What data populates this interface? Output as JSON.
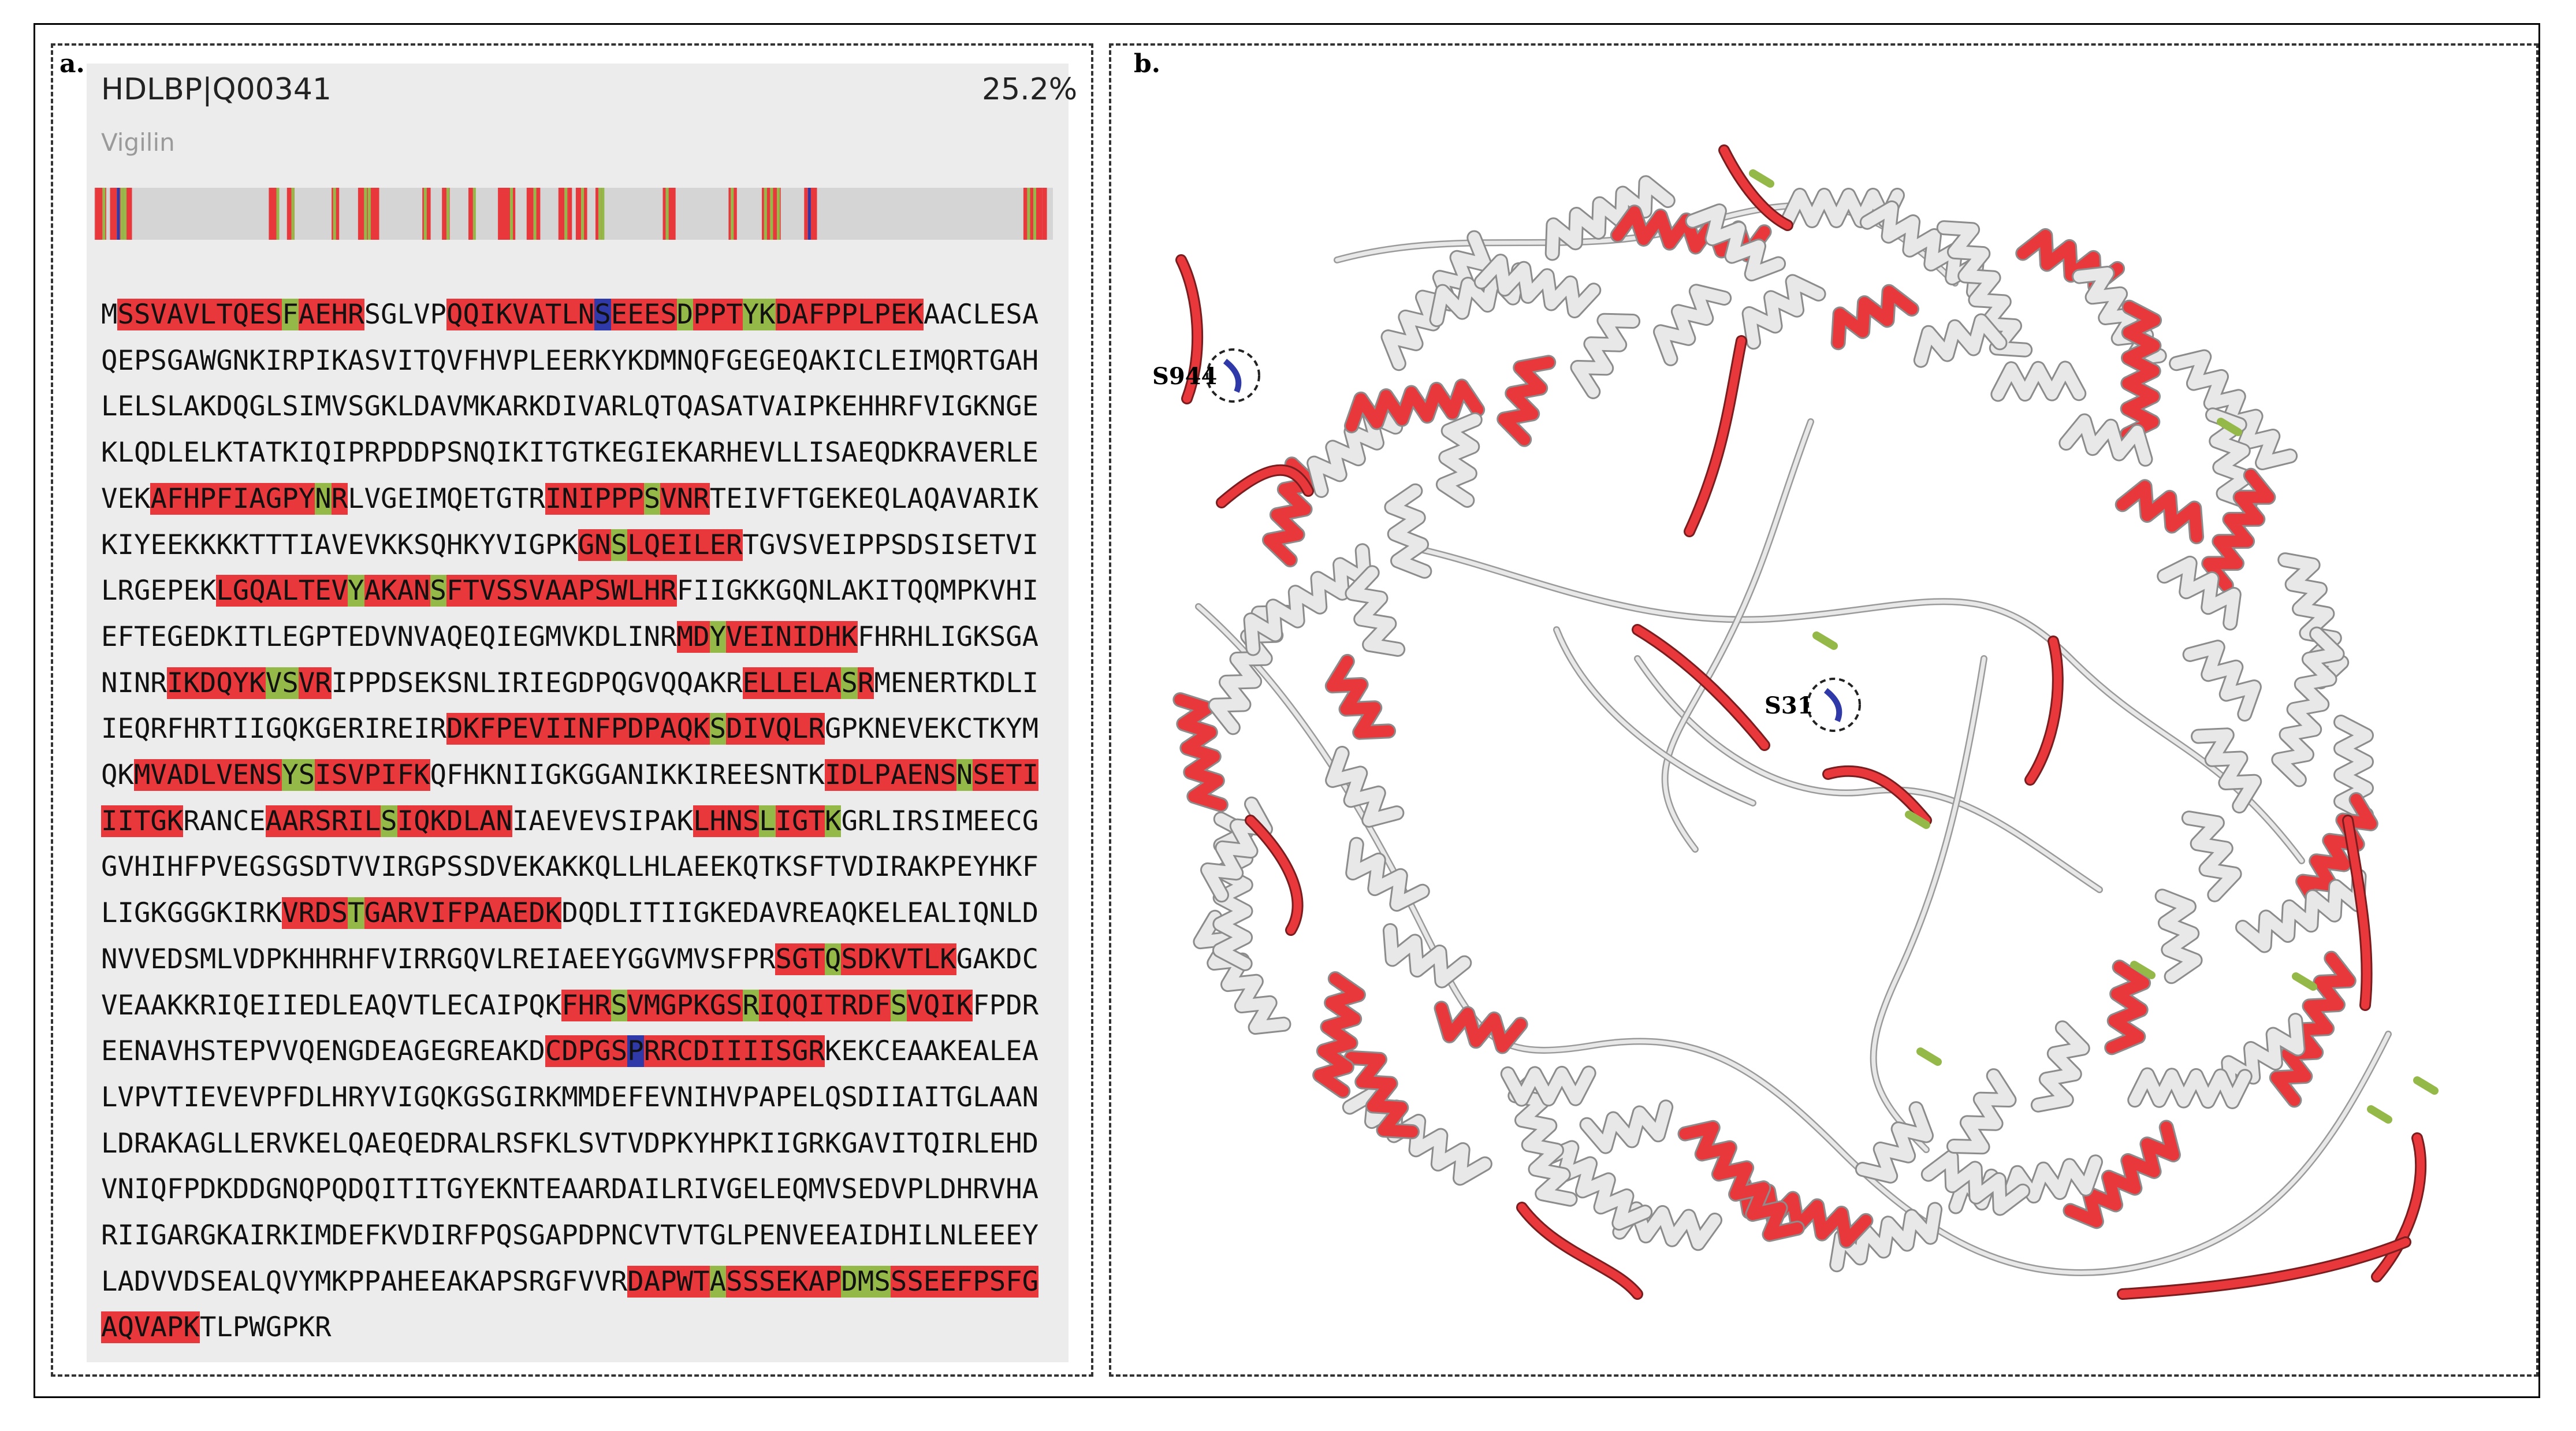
{
  "panel_a": {
    "label": "a.",
    "protein_id": "HDLBP|Q00341",
    "coverage": "25.2%",
    "protein_name": "Vigilin",
    "sequence_lines": [
      "MSSVAVLTQESFAEHRSGLVPQQIKVATLNSEEESDPPTYKDAFPPLPEKAACLESA",
      "QEPSGAWGNKIRPIKASVITQVFHVPLEERKYKDMNQFGEGEQAKICLEIMQRTGAH",
      "LELSLAKDQGLSIMVSGKLDAVMKARKDIVARLQTQASATVAIPKEHHRFVIGKNGE",
      "KLQDLELKTATKIQIPRPDDPSNQIKITGTKEGIEKARHEVLLISAEQDKRAVERLE",
      "VEKAFHPFIAGPYNRLVGEIMQETGTRINIPPPSVNRTEIVFTGEKEQLAQAVARIK",
      "KIYEEKKKKTTTIAVEVKKSQHKYVIGPKGNSLQEILERTGVSVEIPPSDSISETVI",
      "LRGEPEKLGQALTEVYAKANSFTVSSVAAPSWLHRFIIGKKGQNLAKITQQMPKVHI",
      "EFTEGEDKITLEGPTEDVNVAQEQIEGMVKDLINRMDYVEINIDHKFHRHLIGKSGA",
      "NINRIKDQYKVSVRIPPDSEKSNLIRIEGDPQGVQQAKRELLELASRMENERTKDLI",
      "IEQRFHRTIIGQKGERIREIRDKFPEVIINFPDPAQKSDIVQLRGPKNEVEKCTKYM",
      "QKMVADLVENSYSISVPIFKQFHKNIIGKGGANIKKIREESNTKIDLPAENSNSETI",
      "IITGKRANCEAARSRILSIQKDLANIAEVEVSIPAKLHNSLIGTKGRLIRSIMEECG",
      "GVHIHFPVEGSGSDTVVIRGPSSDVEKAKKQLLHLAEEKQTKSFTVDIRAKPEYHKF",
      "LIGKGGGKIRKVRDSTGARVIFPAAEDKDQDLITIIGKEDAVREAQKELEALIQNLD",
      "NVVEDSMLVDPKHHRHFVIRRGQVLREIAEEYGGVMVSFPRSGTQSDKVTLKGAKDC",
      "VEAAKKRIQEIIEDLEAQVTLECAIPQKFHRSVMGPKGSRIQQITRDFSVQIKFPDR",
      "EENAVHSTEPVVQENGDEAGEGREAKDCDPGSPRRCDIIIISGRKEKCEAAKEALEA",
      "LVPVTIEVEVPFDLHRYVIGQKGSGIRKMMDEFEVNIHVPAPELQSDIIAITGLAAN",
      "LDRAKAGLLERVKELQAEQEDRALRSFKLSVTVDPKYHPKIIGRKGAVITQIRLEHD",
      "VNIQFPDKDDGNQPQDQITITGYEKNTEAARDAILRIVGELEQMVSEDVPLDHRVHA",
      "RIIGARGKAIRKIMDEFKVDIRFPQSGAPDPNCVTVTGLPENVEEAIDHILNLEEEY",
      "LADVVDSEALQVYMKPPAHEEAKAPSRGFVVRDAPWTASSSEKAPDMSSSEEFPSFG",
      "AQVAPKTLPWGPKR"
    ],
    "highlights": [
      {
        "line": 0,
        "segs": [
          [
            1,
            "r",
            10
          ],
          [
            11,
            "g",
            1
          ],
          [
            12,
            "r",
            4
          ],
          [
            21,
            "r",
            9
          ],
          [
            30,
            "b",
            1
          ],
          [
            31,
            "r",
            4
          ],
          [
            35,
            "g",
            1
          ],
          [
            36,
            "r",
            3
          ],
          [
            39,
            "g",
            2
          ],
          [
            41,
            "r",
            9
          ]
        ]
      },
      {
        "line": 4,
        "segs": [
          [
            3,
            "r",
            10
          ],
          [
            13,
            "g",
            1
          ],
          [
            14,
            "r",
            1
          ],
          [
            27,
            "r",
            6
          ],
          [
            33,
            "g",
            1
          ],
          [
            34,
            "r",
            3
          ]
        ]
      },
      {
        "line": 5,
        "segs": [
          [
            29,
            "r",
            2
          ],
          [
            31,
            "g",
            1
          ],
          [
            32,
            "r",
            7
          ]
        ]
      },
      {
        "line": 6,
        "segs": [
          [
            7,
            "r",
            8
          ],
          [
            15,
            "g",
            1
          ],
          [
            16,
            "r",
            4
          ],
          [
            20,
            "g",
            1
          ],
          [
            21,
            "r",
            14
          ]
        ]
      },
      {
        "line": 7,
        "segs": [
          [
            35,
            "r",
            2
          ],
          [
            37,
            "g",
            1
          ],
          [
            38,
            "r",
            8
          ]
        ]
      },
      {
        "line": 8,
        "segs": [
          [
            4,
            "r",
            6
          ],
          [
            10,
            "g",
            2
          ],
          [
            12,
            "r",
            2
          ],
          [
            39,
            "r",
            6
          ],
          [
            45,
            "g",
            1
          ],
          [
            46,
            "r",
            1
          ]
        ]
      },
      {
        "line": 9,
        "segs": [
          [
            21,
            "r",
            16
          ],
          [
            37,
            "g",
            1
          ],
          [
            38,
            "r",
            6
          ]
        ]
      },
      {
        "line": 10,
        "segs": [
          [
            2,
            "r",
            9
          ],
          [
            11,
            "g",
            2
          ],
          [
            13,
            "r",
            7
          ],
          [
            44,
            "r",
            8
          ],
          [
            52,
            "g",
            1
          ],
          [
            53,
            "r",
            4
          ]
        ]
      },
      {
        "line": 11,
        "segs": [
          [
            0,
            "r",
            5
          ],
          [
            10,
            "r",
            7
          ],
          [
            17,
            "g",
            1
          ],
          [
            18,
            "r",
            7
          ],
          [
            36,
            "r",
            4
          ],
          [
            40,
            "g",
            1
          ],
          [
            41,
            "r",
            3
          ],
          [
            44,
            "g",
            1
          ]
        ]
      },
      {
        "line": 13,
        "segs": [
          [
            11,
            "r",
            4
          ],
          [
            15,
            "g",
            1
          ],
          [
            16,
            "r",
            12
          ]
        ]
      },
      {
        "line": 14,
        "segs": [
          [
            41,
            "r",
            3
          ],
          [
            44,
            "g",
            1
          ],
          [
            45,
            "r",
            7
          ]
        ]
      },
      {
        "line": 15,
        "segs": [
          [
            28,
            "r",
            3
          ],
          [
            31,
            "g",
            1
          ],
          [
            32,
            "r",
            7
          ],
          [
            39,
            "g",
            1
          ],
          [
            40,
            "r",
            8
          ],
          [
            48,
            "g",
            1
          ],
          [
            49,
            "r",
            4
          ]
        ]
      },
      {
        "line": 16,
        "segs": [
          [
            27,
            "r",
            5
          ],
          [
            32,
            "b",
            1
          ],
          [
            33,
            "r",
            11
          ]
        ]
      },
      {
        "line": 21,
        "segs": [
          [
            32,
            "r",
            5
          ],
          [
            37,
            "g",
            1
          ],
          [
            38,
            "r",
            7
          ],
          [
            45,
            "g",
            3
          ],
          [
            48,
            "r",
            9
          ]
        ]
      },
      {
        "line": 22,
        "segs": [
          [
            0,
            "r",
            6
          ]
        ]
      }
    ]
  },
  "panel_b": {
    "label": "b.",
    "site_labels": [
      "S944",
      "S31"
    ]
  },
  "colors": {
    "phospho_red": "#e8383c",
    "site_green": "#95b949",
    "modified_blue": "#2f3aa8",
    "ribbon_white": "#e8e8e8"
  }
}
